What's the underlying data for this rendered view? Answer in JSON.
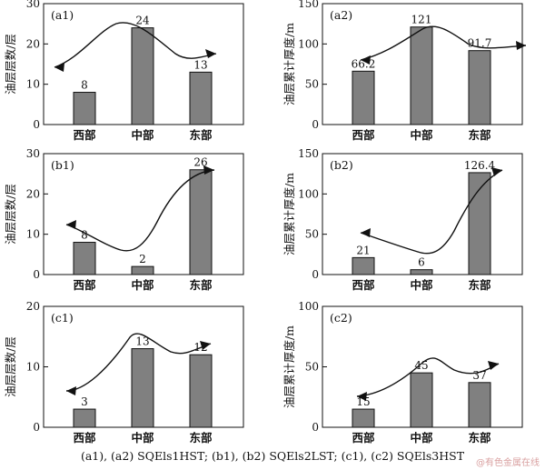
{
  "chart_data": [
    {
      "type": "bar",
      "panel_label": "(a1)",
      "categories": [
        "西部",
        "中部",
        "东部"
      ],
      "values": [
        8,
        24,
        13
      ],
      "value_labels": [
        "8",
        "24",
        "13"
      ],
      "ylabel": "油层层数/层",
      "yticks": [
        "0",
        "10",
        "20",
        "30"
      ],
      "ylim": [
        0,
        30
      ]
    },
    {
      "type": "bar",
      "panel_label": "(a2)",
      "categories": [
        "西部",
        "中部",
        "东部"
      ],
      "values": [
        66.2,
        121,
        91.7
      ],
      "value_labels": [
        "66.2",
        "121",
        "91.7"
      ],
      "ylabel": "油层累计厚度/m",
      "yticks": [
        "0",
        "50",
        "100",
        "150"
      ],
      "ylim": [
        0,
        150
      ]
    },
    {
      "type": "bar",
      "panel_label": "(b1)",
      "categories": [
        "西部",
        "中部",
        "东部"
      ],
      "values": [
        8,
        2,
        26
      ],
      "value_labels": [
        "8",
        "2",
        "26"
      ],
      "ylabel": "油层层数/层",
      "yticks": [
        "0",
        "10",
        "20",
        "30"
      ],
      "ylim": [
        0,
        30
      ]
    },
    {
      "type": "bar",
      "panel_label": "(b2)",
      "categories": [
        "西部",
        "中部",
        "东部"
      ],
      "values": [
        21,
        6,
        126.4
      ],
      "value_labels": [
        "21",
        "6",
        "126.4"
      ],
      "ylabel": "油层累计厚度/m",
      "yticks": [
        "0",
        "50",
        "100",
        "150"
      ],
      "ylim": [
        0,
        150
      ]
    },
    {
      "type": "bar",
      "panel_label": "(c1)",
      "categories": [
        "西部",
        "中部",
        "东部"
      ],
      "values": [
        3,
        13,
        12
      ],
      "value_labels": [
        "3",
        "13",
        "12"
      ],
      "ylabel": "油层层数/层",
      "yticks": [
        "0",
        "10",
        "20"
      ],
      "ylim": [
        0,
        20
      ]
    },
    {
      "type": "bar",
      "panel_label": "(c2)",
      "categories": [
        "西部",
        "中部",
        "东部"
      ],
      "values": [
        15,
        45,
        37
      ],
      "value_labels": [
        "15",
        "45",
        "37"
      ],
      "ylabel": "油层累计厚度/m",
      "yticks": [
        "0",
        "50",
        "100"
      ],
      "ylim": [
        0,
        100
      ]
    }
  ],
  "caption": "(a1), (a2) SQEls1HST; (b1), (b2) SQEls2LST; (c1), (c2) SQEls3HST",
  "watermark": "@有色金属在线",
  "colors": {
    "bar_fill": "#808080",
    "bar_stroke": "#111111",
    "axis": "#111111"
  }
}
